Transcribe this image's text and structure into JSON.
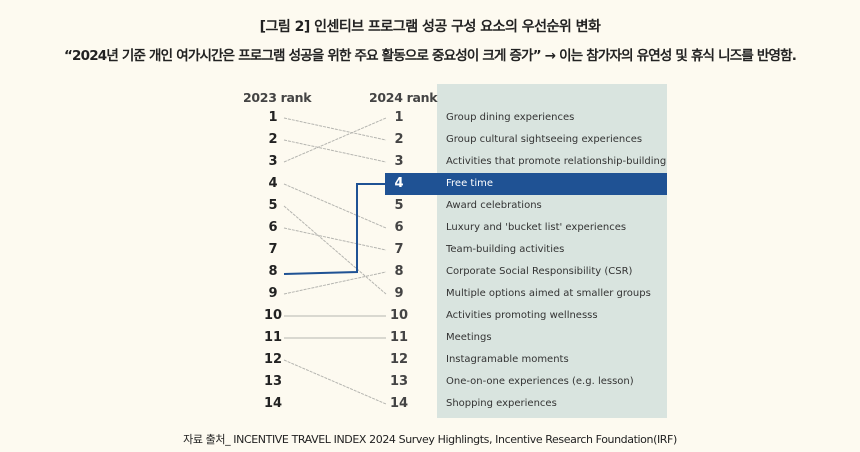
{
  "title": "[그림 2] 인센티브 프로그램 성공 구성 요소의 우선순위 변화",
  "subtitle": "“2024년 기준 개인 여가시간은 프로그램 성공을 위한 주요 활동으로 중요성이 크게 증가” → 이는 참가자의 유연성 및 휴식 니즈를 반영함.",
  "source": "자료 출처_ INCENTIVE TRAVEL INDEX 2024 Survey Highlingts, Incentive Research Foundation(IRF)",
  "colors": {
    "background": "#fdfaf0",
    "panel": "#d9e4df",
    "highlight": "#1f5294",
    "line": "#b5b5b0"
  },
  "chart_data": {
    "type": "slope",
    "left_header": "2023 rank",
    "right_header": "2024 rank",
    "ranks": [
      "1",
      "2",
      "3",
      "4",
      "5",
      "6",
      "7",
      "8",
      "9",
      "10",
      "11",
      "12",
      "13",
      "14"
    ],
    "items_2024": [
      "Group dining experiences",
      "Group cultural sightseeing experiences",
      "Activities that promote relationship-building",
      "Free time",
      "Award celebrations",
      "Luxury and 'bucket list' experiences",
      "Team-building activities",
      "Corporate Social Responsibility (CSR)",
      "Multiple options aimed at smaller groups",
      "Activities promoting wellnesss",
      "Meetings",
      "Instagramable moments",
      "One-on-one experiences (e.g. lesson)",
      "Shopping experiences"
    ],
    "links": [
      {
        "from": 1,
        "to": 2
      },
      {
        "from": 2,
        "to": 3
      },
      {
        "from": 3,
        "to": 1
      },
      {
        "from": 4,
        "to": 6
      },
      {
        "from": 5,
        "to": 9
      },
      {
        "from": 6,
        "to": 7
      },
      {
        "from": 8,
        "to": 4,
        "highlight": true
      },
      {
        "from": 9,
        "to": 8
      },
      {
        "from": 10,
        "to": 10
      },
      {
        "from": 11,
        "to": 11
      },
      {
        "from": 12,
        "to": 14
      }
    ],
    "highlight_rank_2024": 4
  }
}
